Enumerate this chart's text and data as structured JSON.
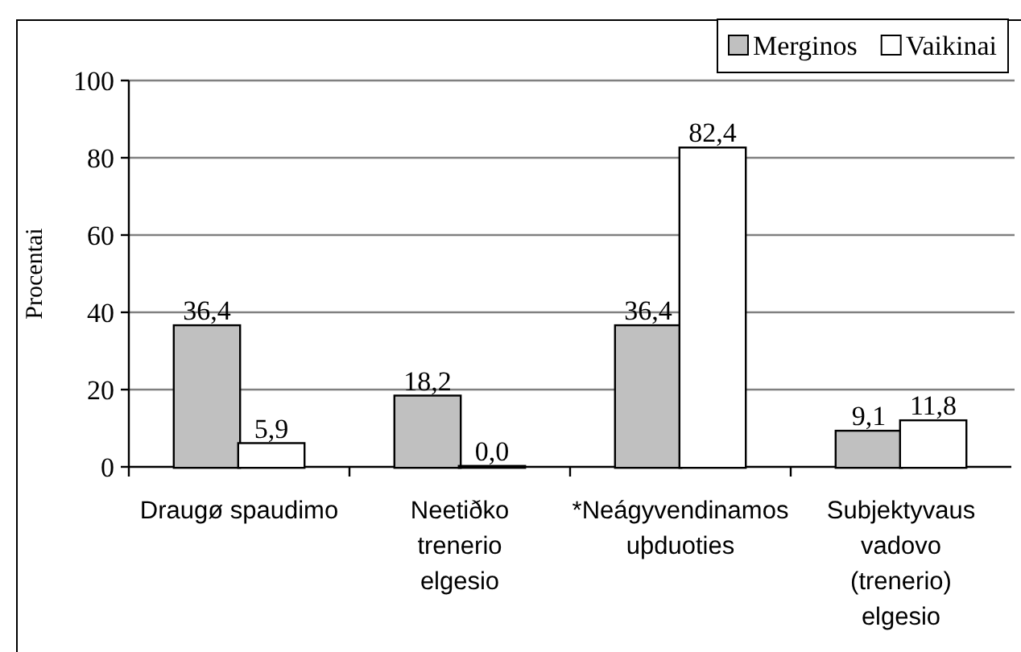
{
  "chart_data": {
    "type": "bar",
    "ylabel": "Procentai",
    "categories": [
      "Draugø spaudimo",
      "Neetiðko\ntrenerio\nelgesio",
      "*Neágyvendinamos\nuþduoties",
      "Subjektyvaus\nvadovo\n(trenerio)\nelgesio"
    ],
    "series": [
      {
        "name": "Merginos",
        "color": "#c0c0c0",
        "values": [
          36.4,
          18.2,
          36.4,
          9.1
        ],
        "value_labels": [
          "36,4",
          "18,2",
          "36,4",
          "9,1"
        ]
      },
      {
        "name": "Vaikinai",
        "color": "#ffffff",
        "values": [
          5.9,
          0,
          82.4,
          11.8
        ],
        "value_labels": [
          "5,9",
          "0,0",
          "82,4",
          "11,8"
        ]
      }
    ],
    "ylim": [
      0,
      100
    ],
    "yticks": [
      0,
      20,
      40,
      60,
      80,
      100
    ],
    "grid": "y",
    "legend": "top right"
  }
}
